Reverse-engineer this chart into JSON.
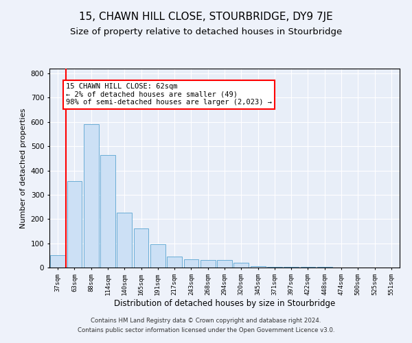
{
  "title": "15, CHAWN HILL CLOSE, STOURBRIDGE, DY9 7JE",
  "subtitle": "Size of property relative to detached houses in Stourbridge",
  "xlabel": "Distribution of detached houses by size in Stourbridge",
  "ylabel": "Number of detached properties",
  "categories": [
    "37sqm",
    "63sqm",
    "88sqm",
    "114sqm",
    "140sqm",
    "165sqm",
    "191sqm",
    "217sqm",
    "243sqm",
    "268sqm",
    "294sqm",
    "320sqm",
    "345sqm",
    "371sqm",
    "397sqm",
    "422sqm",
    "448sqm",
    "474sqm",
    "500sqm",
    "525sqm",
    "551sqm"
  ],
  "values": [
    50,
    355,
    590,
    465,
    225,
    160,
    95,
    45,
    35,
    30,
    30,
    20,
    5,
    3,
    3,
    2,
    2,
    1,
    1,
    1,
    1
  ],
  "bar_color": "#cce0f5",
  "bar_edge_color": "#6aadd5",
  "ylim": [
    0,
    820
  ],
  "yticks": [
    0,
    100,
    200,
    300,
    400,
    500,
    600,
    700,
    800
  ],
  "annotation_text": "15 CHAWN HILL CLOSE: 62sqm\n← 2% of detached houses are smaller (49)\n98% of semi-detached houses are larger (2,023) →",
  "red_line_x": 0.5,
  "footer_line1": "Contains HM Land Registry data © Crown copyright and database right 2024.",
  "footer_line2": "Contains public sector information licensed under the Open Government Licence v3.0.",
  "background_color": "#eef2fa",
  "plot_bg_color": "#e8eef8",
  "grid_color": "#ffffff",
  "title_fontsize": 11,
  "subtitle_fontsize": 9.5,
  "xlabel_fontsize": 8.5,
  "ylabel_fontsize": 8
}
